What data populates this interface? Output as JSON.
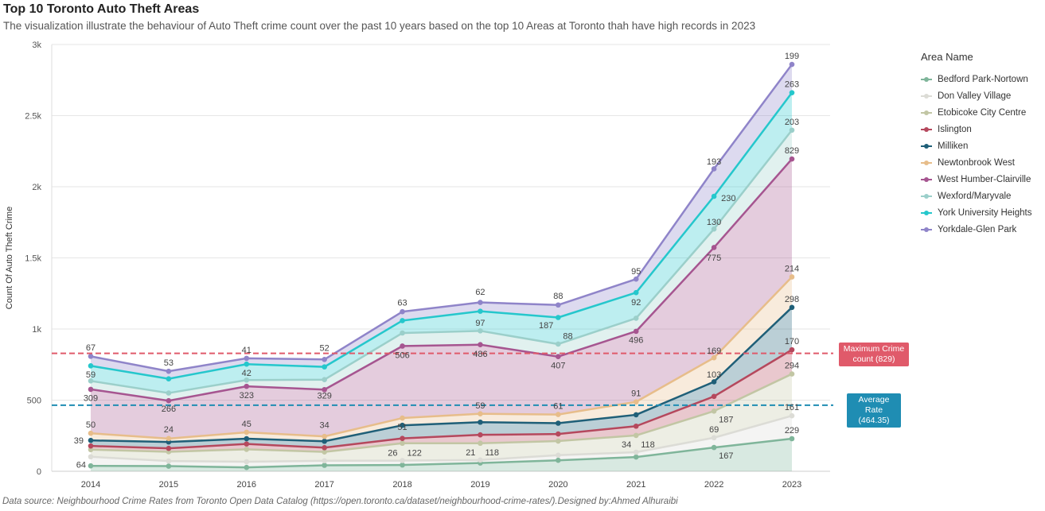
{
  "header": {
    "title": "Top 10 Toronto Auto Theft Areas",
    "subtitle": "The visualization illustrate the behaviour of Auto Theft crime count over the past 10 years based on the top 10 Areas at Toronto thah have high records in 2023"
  },
  "footer": {
    "source": "Data source: Neighbourhood Crime Rates from Toronto Open Data Catalog (https://open.toronto.ca/dataset/neighbourhood-crime-rates/).Designed by:Ahmed Alhuraibi"
  },
  "reference_lines": {
    "max_label": "Maximum Crime count (829)",
    "max_value": 829,
    "max_color": "#e05a6a",
    "avg_label": "Average Rate (464.35)",
    "avg_value": 464.35,
    "avg_color": "#1f8db3"
  },
  "chart_data": {
    "type": "area",
    "stacked": true,
    "x": [
      "2014",
      "2015",
      "2016",
      "2017",
      "2018",
      "2019",
      "2020",
      "2021",
      "2022",
      "2023"
    ],
    "ylabel": "Count Of Auto Theft Crime",
    "xlabel": "",
    "ylim": [
      0,
      3000
    ],
    "yticks": [
      0,
      500,
      1000,
      1500,
      2000,
      2500,
      3000
    ],
    "ytick_labels": [
      "0",
      "500",
      "1k",
      "1.5k",
      "2k",
      "2.5k",
      "3k"
    ],
    "grid": true,
    "legend_title": "Area Name",
    "legend_position": "right",
    "series": [
      {
        "name": "Bedford Park-Nortown",
        "color": "#7fb59a",
        "values": [
          38,
          36,
          27,
          42,
          44,
          58,
          77,
          100,
          167,
          229
        ]
      },
      {
        "name": "Don Valley Village",
        "color": "#dcdcd6",
        "values": [
          64,
          36,
          40,
          32,
          31,
          21,
          36,
          34,
          69,
          161
        ]
      },
      {
        "name": "Etobicoke City Centre",
        "color": "#c2c6a4",
        "values": [
          50,
          65,
          87,
          62,
          122,
          118,
          99,
          118,
          187,
          294
        ]
      },
      {
        "name": "Islington",
        "color": "#b5485d",
        "values": [
          26,
          24,
          38,
          30,
          34,
          59,
          50,
          65,
          103,
          170
        ]
      },
      {
        "name": "Milliken",
        "color": "#1f5f78",
        "values": [
          39,
          45,
          37,
          45,
          92,
          89,
          76,
          80,
          103,
          298
        ]
      },
      {
        "name": "Newtonbrook West",
        "color": "#e7bd8a",
        "values": [
          50,
          24,
          45,
          34,
          51,
          59,
          61,
          91,
          169,
          214
        ]
      },
      {
        "name": "West Humber-Clairville",
        "color": "#a65590",
        "values": [
          309,
          266,
          323,
          329,
          506,
          486,
          407,
          496,
          775,
          829
        ]
      },
      {
        "name": "Wexford/Maryvale",
        "color": "#9bcfca",
        "values": [
          59,
          54,
          44,
          70,
          92,
          97,
          88,
          92,
          130,
          203
        ]
      },
      {
        "name": "York University Heights",
        "color": "#25c7cc",
        "values": [
          106,
          100,
          112,
          90,
          87,
          138,
          187,
          180,
          230,
          263
        ]
      },
      {
        "name": "Yorkdale-Glen Park",
        "color": "#8f84c9",
        "values": [
          67,
          53,
          41,
          52,
          63,
          62,
          88,
          95,
          193,
          199
        ]
      }
    ],
    "annotations": [
      {
        "x": "2014",
        "y": 810,
        "text": "67",
        "pos": "above"
      },
      {
        "x": "2014",
        "y": 743,
        "text": "59",
        "pos": "below"
      },
      {
        "x": "2014",
        "y": 578,
        "text": "309",
        "pos": "below"
      },
      {
        "x": "2014",
        "y": 269,
        "text": "50",
        "pos": "above"
      },
      {
        "x": "2014",
        "y": 219,
        "text": "39",
        "pos": "left"
      },
      {
        "x": "2014",
        "y": 102,
        "text": "64",
        "pos": "below-left"
      },
      {
        "x": "2015",
        "y": 703,
        "text": "53",
        "pos": "above"
      },
      {
        "x": "2015",
        "y": 502,
        "text": "266",
        "pos": "below"
      },
      {
        "x": "2015",
        "y": 236,
        "text": "24",
        "pos": "above"
      },
      {
        "x": "2016",
        "y": 794,
        "text": "41",
        "pos": "above"
      },
      {
        "x": "2016",
        "y": 753,
        "text": "42",
        "pos": "below"
      },
      {
        "x": "2016",
        "y": 597,
        "text": "323",
        "pos": "below"
      },
      {
        "x": "2016",
        "y": 274,
        "text": "45",
        "pos": "above"
      },
      {
        "x": "2017",
        "y": 806,
        "text": "52",
        "pos": "above"
      },
      {
        "x": "2017",
        "y": 594,
        "text": "329",
        "pos": "below"
      },
      {
        "x": "2017",
        "y": 265,
        "text": "34",
        "pos": "above"
      },
      {
        "x": "2018",
        "y": 1126,
        "text": "63",
        "pos": "above"
      },
      {
        "x": "2018",
        "y": 880,
        "text": "506",
        "pos": "below"
      },
      {
        "x": "2018",
        "y": 374,
        "text": "51",
        "pos": "below"
      },
      {
        "x": "2018",
        "y": 75,
        "text": "26",
        "pos": "above-left"
      },
      {
        "x": "2018",
        "y": 75,
        "text": "122",
        "pos": "above-right"
      },
      {
        "x": "2019",
        "y": 1201,
        "text": "62",
        "pos": "above"
      },
      {
        "x": "2019",
        "y": 984,
        "text": "97",
        "pos": "above"
      },
      {
        "x": "2019",
        "y": 889,
        "text": "486",
        "pos": "below"
      },
      {
        "x": "2019",
        "y": 403,
        "text": "59",
        "pos": "above"
      },
      {
        "x": "2019",
        "y": 79,
        "text": "21",
        "pos": "above-left"
      },
      {
        "x": "2019",
        "y": 79,
        "text": "118",
        "pos": "above-right"
      },
      {
        "x": "2020",
        "y": 1172,
        "text": "88",
        "pos": "above"
      },
      {
        "x": "2020",
        "y": 1084,
        "text": "187",
        "pos": "below-left"
      },
      {
        "x": "2020",
        "y": 897,
        "text": "88",
        "pos": "above-right"
      },
      {
        "x": "2020",
        "y": 806,
        "text": "407",
        "pos": "below"
      },
      {
        "x": "2020",
        "y": 399,
        "text": "61",
        "pos": "above"
      },
      {
        "x": "2021",
        "y": 1346,
        "text": "95",
        "pos": "above"
      },
      {
        "x": "2021",
        "y": 1251,
        "text": "92",
        "pos": "below"
      },
      {
        "x": "2021",
        "y": 985,
        "text": "496",
        "pos": "below"
      },
      {
        "x": "2021",
        "y": 489,
        "text": "91",
        "pos": "above"
      },
      {
        "x": "2021",
        "y": 134,
        "text": "34",
        "pos": "above-left"
      },
      {
        "x": "2021",
        "y": 134,
        "text": "118",
        "pos": "above-right"
      },
      {
        "x": "2022",
        "y": 2116,
        "text": "193",
        "pos": "above"
      },
      {
        "x": "2022",
        "y": 1923,
        "text": "230",
        "pos": "right"
      },
      {
        "x": "2022",
        "y": 1693,
        "text": "130",
        "pos": "above"
      },
      {
        "x": "2022",
        "y": 1563,
        "text": "775",
        "pos": "below"
      },
      {
        "x": "2022",
        "y": 788,
        "text": "169",
        "pos": "above"
      },
      {
        "x": "2022",
        "y": 619,
        "text": "103",
        "pos": "above"
      },
      {
        "x": "2022",
        "y": 423,
        "text": "187",
        "pos": "below-right"
      },
      {
        "x": "2022",
        "y": 236,
        "text": "69",
        "pos": "above"
      },
      {
        "x": "2022",
        "y": 167,
        "text": "167",
        "pos": "below-right"
      },
      {
        "x": "2023",
        "y": 2860,
        "text": "199",
        "pos": "above"
      },
      {
        "x": "2023",
        "y": 2661,
        "text": "263",
        "pos": "above"
      },
      {
        "x": "2023",
        "y": 2398,
        "text": "203",
        "pos": "above"
      },
      {
        "x": "2023",
        "y": 2195,
        "text": "829",
        "pos": "above"
      },
      {
        "x": "2023",
        "y": 1366,
        "text": "214",
        "pos": "above"
      },
      {
        "x": "2023",
        "y": 1152,
        "text": "298",
        "pos": "above"
      },
      {
        "x": "2023",
        "y": 854,
        "text": "170",
        "pos": "above"
      },
      {
        "x": "2023",
        "y": 684,
        "text": "294",
        "pos": "above"
      },
      {
        "x": "2023",
        "y": 390,
        "text": "161",
        "pos": "above"
      },
      {
        "x": "2023",
        "y": 229,
        "text": "229",
        "pos": "above"
      }
    ]
  }
}
